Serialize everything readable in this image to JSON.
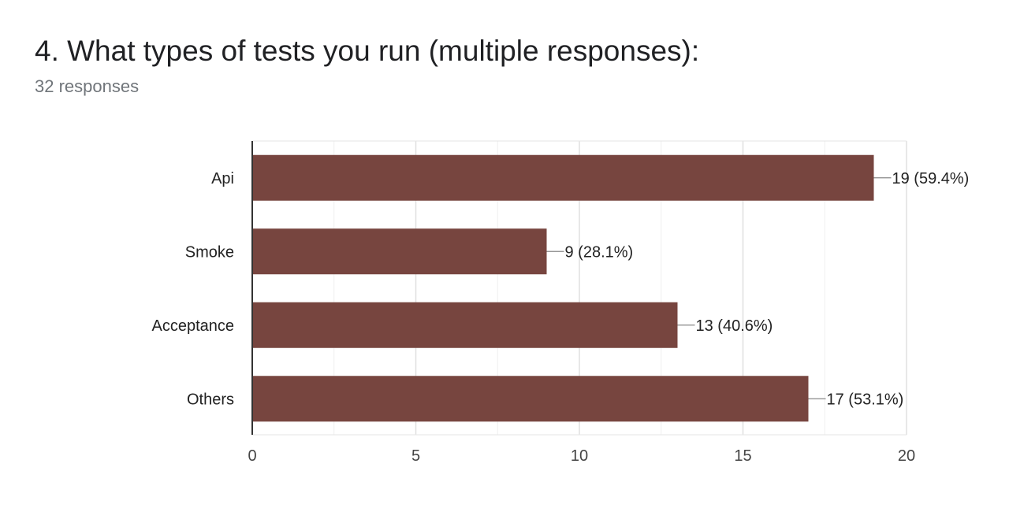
{
  "question": {
    "title": "4. What types of tests you run (multiple responses):",
    "responses": "32 responses"
  },
  "chart_data": {
    "type": "bar",
    "orientation": "horizontal",
    "categories": [
      "Api",
      "Smoke",
      "Acceptance",
      "Others"
    ],
    "values": [
      19,
      9,
      13,
      17
    ],
    "data_labels": [
      "19 (59.4%)",
      "9 (28.1%)",
      "13 (40.6%)",
      "17 (53.1%)"
    ],
    "xlim": [
      0,
      20
    ],
    "xticks": [
      0,
      5,
      10,
      15,
      20
    ],
    "minor_gridlines": true,
    "grid": true,
    "legend": "none",
    "bar_color": "#77453F"
  }
}
